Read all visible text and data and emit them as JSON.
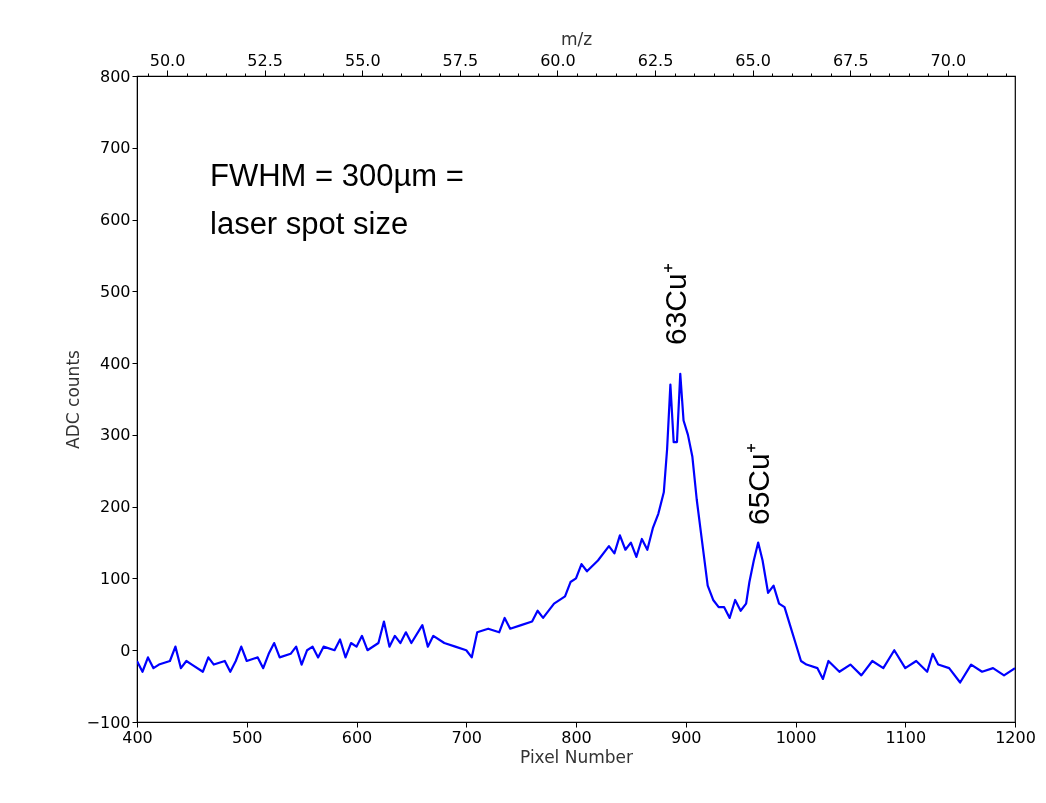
{
  "chart_data": {
    "type": "line",
    "xlabel": "Pixel Number",
    "ylabel": "ADC counts",
    "x2label": "m/z",
    "x": [
      400,
      405,
      410,
      415,
      420,
      430,
      435,
      440,
      445,
      450,
      460,
      465,
      470,
      480,
      485,
      490,
      495,
      500,
      510,
      515,
      520,
      525,
      530,
      540,
      545,
      550,
      555,
      560,
      565,
      570,
      580,
      585,
      590,
      595,
      600,
      605,
      610,
      620,
      625,
      630,
      635,
      640,
      645,
      650,
      660,
      665,
      670,
      680,
      690,
      700,
      705,
      710,
      720,
      730,
      735,
      740,
      750,
      760,
      765,
      770,
      780,
      790,
      795,
      800,
      805,
      810,
      820,
      830,
      835,
      840,
      845,
      850,
      855,
      860,
      865,
      870,
      875,
      880,
      883,
      886,
      889,
      892,
      895,
      898,
      902,
      906,
      910,
      915,
      920,
      925,
      930,
      935,
      940,
      945,
      950,
      955,
      958,
      962,
      966,
      970,
      975,
      980,
      985,
      990,
      995,
      1000,
      1005,
      1010,
      1020,
      1025,
      1030,
      1040,
      1050,
      1060,
      1070,
      1080,
      1090,
      1100,
      1110,
      1120,
      1125,
      1130,
      1140,
      1150,
      1160,
      1170,
      1180,
      1190,
      1200
    ],
    "series": [
      {
        "color": "#0000ff",
        "values": [
          -15,
          -30,
          -10,
          -25,
          -20,
          -15,
          5,
          -25,
          -15,
          -20,
          -30,
          -10,
          -20,
          -15,
          -30,
          -15,
          5,
          -15,
          -10,
          -25,
          -5,
          10,
          -10,
          -5,
          5,
          -20,
          0,
          5,
          -10,
          5,
          0,
          15,
          -10,
          10,
          5,
          20,
          0,
          10,
          40,
          5,
          20,
          10,
          25,
          10,
          35,
          5,
          20,
          10,
          5,
          0,
          -10,
          25,
          30,
          25,
          45,
          30,
          35,
          40,
          55,
          45,
          65,
          75,
          95,
          100,
          120,
          110,
          125,
          145,
          135,
          160,
          140,
          150,
          130,
          155,
          140,
          170,
          190,
          220,
          280,
          370,
          290,
          290,
          385,
          320,
          300,
          270,
          210,
          150,
          90,
          70,
          60,
          60,
          45,
          70,
          55,
          65,
          95,
          125,
          150,
          125,
          80,
          90,
          65,
          60,
          35,
          10,
          -15,
          -20,
          -25,
          -40,
          -15,
          -30,
          -20,
          -35,
          -15,
          -25,
          0,
          -25,
          -15,
          -30,
          -5,
          -20,
          -25,
          -45,
          -20,
          -30,
          -25,
          -35,
          -25
        ]
      }
    ],
    "xlim": [
      400,
      1200
    ],
    "xticks": [
      400,
      500,
      600,
      700,
      800,
      900,
      1000,
      1100,
      1200
    ],
    "ylim": [
      -100,
      800
    ],
    "yticks": [
      {
        "value": -100,
        "label": "−100"
      },
      0,
      100,
      200,
      300,
      400,
      500,
      600,
      700,
      800
    ],
    "x2lim": [
      49.23,
      71.72
    ],
    "x2ticks": [
      {
        "value": 49.5,
        "label": null
      },
      {
        "value": 50,
        "label": "50.0"
      },
      {
        "value": 50.5,
        "label": null
      },
      {
        "value": 51,
        "label": null
      },
      {
        "value": 51.5,
        "label": null
      },
      {
        "value": 52,
        "label": null
      },
      {
        "value": 52.5,
        "label": "52.5"
      },
      {
        "value": 53,
        "label": null
      },
      {
        "value": 53.5,
        "label": null
      },
      {
        "value": 54,
        "label": null
      },
      {
        "value": 54.5,
        "label": null
      },
      {
        "value": 55,
        "label": "55.0"
      },
      {
        "value": 55.5,
        "label": null
      },
      {
        "value": 56,
        "label": null
      },
      {
        "value": 56.5,
        "label": null
      },
      {
        "value": 57,
        "label": null
      },
      {
        "value": 57.5,
        "label": "57.5"
      },
      {
        "value": 58,
        "label": null
      },
      {
        "value": 58.5,
        "label": null
      },
      {
        "value": 59,
        "label": null
      },
      {
        "value": 59.5,
        "label": null
      },
      {
        "value": 60,
        "label": "60.0"
      },
      {
        "value": 60.5,
        "label": null
      },
      {
        "value": 61,
        "label": null
      },
      {
        "value": 61.5,
        "label": null
      },
      {
        "value": 62,
        "label": null
      },
      {
        "value": 62.5,
        "label": "62.5"
      },
      {
        "value": 63,
        "label": null
      },
      {
        "value": 63.5,
        "label": null
      },
      {
        "value": 64,
        "label": null
      },
      {
        "value": 64.5,
        "label": null
      },
      {
        "value": 65,
        "label": "65.0"
      },
      {
        "value": 65.5,
        "label": null
      },
      {
        "value": 66,
        "label": null
      },
      {
        "value": 66.5,
        "label": null
      },
      {
        "value": 67,
        "label": null
      },
      {
        "value": 67.5,
        "label": "67.5"
      },
      {
        "value": 68,
        "label": null
      },
      {
        "value": 68.5,
        "label": null
      },
      {
        "value": 69,
        "label": null
      },
      {
        "value": 69.5,
        "label": null
      },
      {
        "value": 70,
        "label": "70.0"
      },
      {
        "value": 70.5,
        "label": null
      },
      {
        "value": 71,
        "label": null
      },
      {
        "value": 71.5,
        "label": null
      }
    ],
    "annotations": [
      "FWHM = 300µm = laser spot size",
      "63Cu⁺",
      "65Cu⁺"
    ]
  }
}
